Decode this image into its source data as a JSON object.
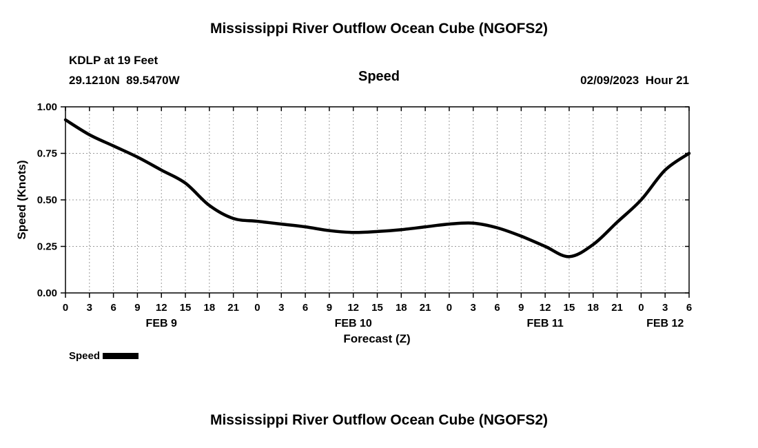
{
  "header": {
    "top_title": "Mississippi River Outflow Ocean Cube (NGOFS2)",
    "station_name": "KDLP at 19 Feet",
    "station_coords": "29.1210N  89.5470W",
    "panel_title": "Speed",
    "run_info": "02/09/2023  Hour 21"
  },
  "legend": {
    "label": "Speed"
  },
  "footer": {
    "bottom_title": "Mississippi River Outflow Ocean Cube (NGOFS2)"
  },
  "chart_data": {
    "type": "line",
    "title": "Speed",
    "xlabel": "Forecast (Z)",
    "ylabel": "Speed (Knots)",
    "xlim": [
      0,
      78
    ],
    "ylim": [
      0.0,
      1.0
    ],
    "grid": true,
    "legend_position": "bottom-left",
    "x_hours": [
      0,
      3,
      6,
      9,
      12,
      15,
      18,
      21,
      24,
      27,
      30,
      33,
      36,
      39,
      42,
      45,
      48,
      51,
      54,
      57,
      60,
      63,
      66,
      69,
      72,
      75,
      78
    ],
    "xtick_labels": [
      "0",
      "3",
      "6",
      "9",
      "12",
      "15",
      "18",
      "21",
      "0",
      "3",
      "6",
      "9",
      "12",
      "15",
      "18",
      "21",
      "0",
      "3",
      "6",
      "9",
      "12",
      "15",
      "18",
      "21",
      "0",
      "3",
      "6"
    ],
    "yticks": [
      0.0,
      0.25,
      0.5,
      0.75,
      1.0
    ],
    "ytick_labels": [
      "0.00",
      "0.25",
      "0.50",
      "0.75",
      "1.00"
    ],
    "day_labels": [
      {
        "label": "FEB 9",
        "hour": 12
      },
      {
        "label": "FEB 10",
        "hour": 36
      },
      {
        "label": "FEB 11",
        "hour": 60
      },
      {
        "label": "FEB 12",
        "hour": 75
      }
    ],
    "series": [
      {
        "name": "Speed",
        "color": "#000000",
        "units": "knots",
        "values": [
          0.93,
          0.85,
          0.79,
          0.73,
          0.66,
          0.59,
          0.47,
          0.4,
          0.385,
          0.37,
          0.355,
          0.335,
          0.325,
          0.33,
          0.34,
          0.355,
          0.37,
          0.375,
          0.35,
          0.305,
          0.25,
          0.195,
          0.26,
          0.38,
          0.5,
          0.66,
          0.75
        ]
      }
    ]
  }
}
